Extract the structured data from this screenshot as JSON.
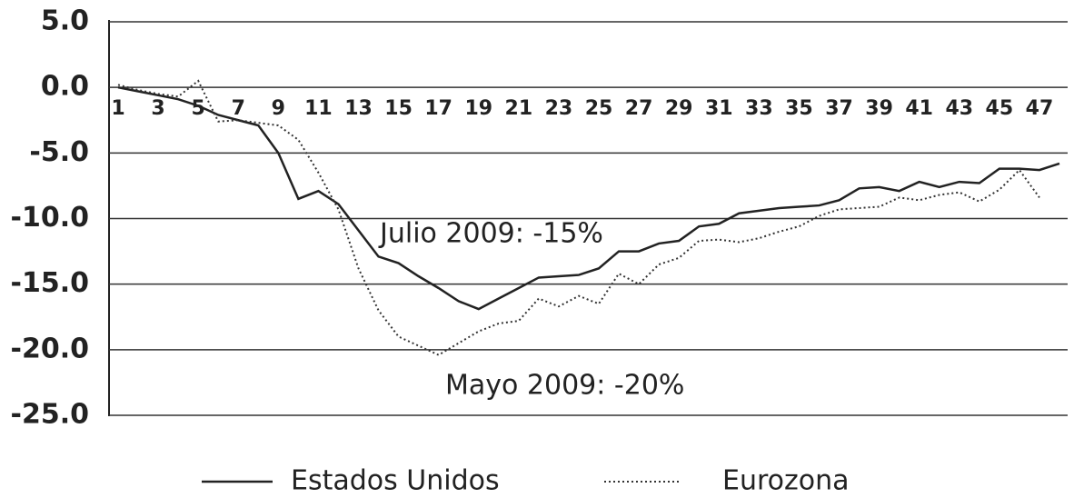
{
  "chart_data": {
    "type": "line",
    "categories": [
      "1",
      null,
      "3",
      null,
      "5",
      null,
      "7",
      null,
      "9",
      null,
      "11",
      null,
      "13",
      null,
      "15",
      null,
      "17",
      null,
      "19",
      null,
      "21",
      null,
      "23",
      null,
      "25",
      null,
      "27",
      null,
      "29",
      null,
      "31",
      null,
      "33",
      null,
      "35",
      null,
      "37",
      null,
      "39",
      null,
      "41",
      null,
      "43",
      null,
      "45",
      null,
      "47",
      null
    ],
    "series": [
      {
        "name": "Estados Unidos",
        "color": "#222222",
        "style": "solid",
        "values": [
          0.0,
          -0.3,
          -0.6,
          -0.9,
          -1.4,
          -2.1,
          -2.5,
          -2.9,
          -5.0,
          -8.5,
          -7.9,
          -8.9,
          -10.9,
          -12.9,
          -13.4,
          -14.4,
          -15.3,
          -16.3,
          -16.9,
          -16.1,
          -15.3,
          -14.5,
          -14.4,
          -14.3,
          -13.8,
          -12.5,
          -12.5,
          -11.9,
          -11.7,
          -10.6,
          -10.4,
          -9.6,
          -9.4,
          -9.2,
          -9.1,
          -9.0,
          -8.6,
          -7.7,
          -7.6,
          -7.9,
          -7.2,
          -7.6,
          -7.2,
          -7.3,
          -6.2,
          -6.2,
          -6.3,
          -5.8
        ]
      },
      {
        "name": "Eurozona",
        "color": "#333333",
        "style": "dotted",
        "values": [
          0.2,
          -0.2,
          -0.5,
          -0.7,
          0.5,
          -2.6,
          -2.5,
          -2.7,
          -2.9,
          -4.0,
          -6.5,
          -9.3,
          -13.8,
          -17.0,
          -19.0,
          -19.7,
          -20.4,
          -19.5,
          -18.6,
          -18.0,
          -17.8,
          -16.1,
          -16.7,
          -15.9,
          -16.5,
          -14.2,
          -15.0,
          -13.5,
          -13.0,
          -11.7,
          -11.6,
          -11.8,
          -11.5,
          -11.0,
          -10.6,
          -9.8,
          -9.3,
          -9.2,
          -9.1,
          -8.4,
          -8.6,
          -8.2,
          -8.0,
          -8.7,
          -7.8,
          -6.3,
          -8.4,
          null
        ]
      }
    ],
    "ylim": [
      -25,
      5
    ],
    "yticks": [
      {
        "value": 5,
        "label": "5.0"
      },
      {
        "value": 0,
        "label": "0.0"
      },
      {
        "value": -5,
        "label": "-5.0"
      },
      {
        "value": -10,
        "label": "-10.0"
      },
      {
        "value": -15,
        "label": "-15.0"
      },
      {
        "value": -20,
        "label": "-20.0"
      },
      {
        "value": -25,
        "label": "-25.0"
      }
    ],
    "grid": true,
    "annotations": [
      "Julio 2009: -15%",
      "Mayo 2009: -20%"
    ]
  }
}
